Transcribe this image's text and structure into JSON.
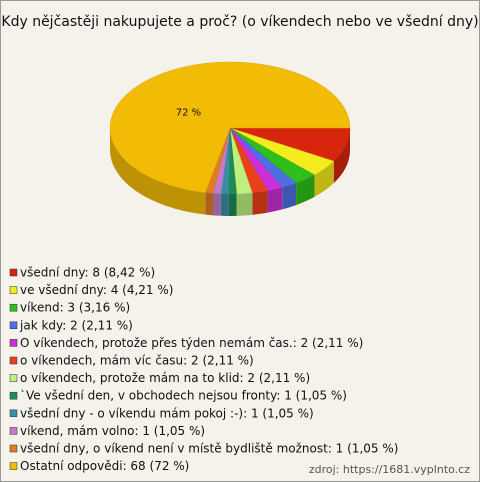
{
  "chart_data": {
    "type": "pie",
    "title": "Kdy nějčastěji nakupujete a proč? (o víkendech nebo ve všední dny)",
    "categories": [
      "všední dny: 8 (8,42 %)",
      "ve všední dny: 4 (4,21 %)",
      "víkend: 3 (3,16 %)",
      "jak kdy: 2 (2,11 %)",
      "O víkendech, protože přes týden nemám čas.: 2 (2,11 %)",
      "o víkendech, mám víc času: 2 (2,11 %)",
      "o víkendech, protože mám na to klid: 2 (2,11 %)",
      "`Ve všední den, v obchodech nejsou fronty: 1 (1,05 %)",
      "všední dny - o víkendu mám pokoj :-): 1 (1,05 %)",
      "víkend, mám volno: 1 (1,05 %)",
      "všední dny, o víkend není v místě bydliště možnost: 1 (1,05 %)",
      "Ostatní odpovědi: 68 (72 %)"
    ],
    "values": [
      8.42,
      4.21,
      3.16,
      2.11,
      2.11,
      2.11,
      2.11,
      1.05,
      1.05,
      1.05,
      1.05,
      72
    ],
    "value_labels": [
      null,
      null,
      null,
      null,
      null,
      null,
      null,
      null,
      null,
      null,
      null,
      "72 %"
    ],
    "colors": [
      "#d8260e",
      "#f4ec1c",
      "#2fbf1a",
      "#4d6fe0",
      "#c830d8",
      "#e8401a",
      "#bdf07c",
      "#1e8a58",
      "#3a8ea2",
      "#c07cc8",
      "#e07c22",
      "#f2bc06"
    ],
    "source": "zdroj: https://1681.vyplnto.cz"
  }
}
